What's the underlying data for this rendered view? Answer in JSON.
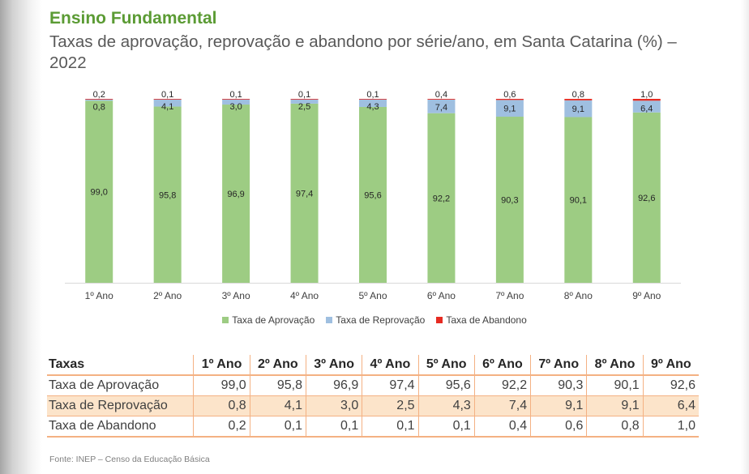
{
  "section_title": "Ensino Fundamental",
  "subtitle": "Taxas de aprovação, reprovação e abandono por série/ano, em Santa Catarina (%) – 2022",
  "chart_data": {
    "type": "bar",
    "stacked": true,
    "categories": [
      "1º Ano",
      "2º Ano",
      "3º Ano",
      "4º Ano",
      "5º Ano",
      "6º Ano",
      "7º Ano",
      "8º Ano",
      "9º Ano"
    ],
    "series": [
      {
        "name": "Taxa de Aprovação",
        "color": "#9dcc83",
        "values": [
          99.0,
          95.8,
          96.9,
          97.4,
          95.6,
          92.2,
          90.3,
          90.1,
          92.6
        ],
        "labels": [
          "99,0",
          "95,8",
          "96,9",
          "97,4",
          "95,6",
          "92,2",
          "90,3",
          "90,1",
          "92,6"
        ]
      },
      {
        "name": "Taxa de Reprovação",
        "color": "#9fbfe0",
        "values": [
          0.8,
          4.1,
          3.0,
          2.5,
          4.3,
          7.4,
          9.1,
          9.1,
          6.4
        ],
        "labels": [
          "0,8",
          "4,1",
          "3,0",
          "2,5",
          "4,3",
          "7,4",
          "9,1",
          "9,1",
          "6,4"
        ]
      },
      {
        "name": "Taxa de Abandono",
        "color": "#e62b22",
        "values": [
          0.2,
          0.1,
          0.1,
          0.1,
          0.1,
          0.4,
          0.6,
          0.8,
          1.0
        ],
        "labels": [
          "0,2",
          "0,1",
          "0,1",
          "0,1",
          "0,1",
          "0,4",
          "0,6",
          "0,8",
          "1,0"
        ]
      }
    ],
    "ylim": [
      0,
      100
    ],
    "grid": false,
    "legend_position": "bottom"
  },
  "table": {
    "corner_header": "Taxas",
    "headers": [
      "1º Ano",
      "2º Ano",
      "3º Ano",
      "4º Ano",
      "5º Ano",
      "6º Ano",
      "7º Ano",
      "8º Ano",
      "9º Ano"
    ],
    "rows": [
      {
        "label": "Taxa de Aprovação",
        "cells": [
          "99,0",
          "95,8",
          "96,9",
          "97,4",
          "95,6",
          "92,2",
          "90,3",
          "90,1",
          "92,6"
        ]
      },
      {
        "label": "Taxa de Reprovação",
        "cells": [
          "0,8",
          "4,1",
          "3,0",
          "2,5",
          "4,3",
          "7,4",
          "9,1",
          "9,1",
          "6,4"
        ]
      },
      {
        "label": "Taxa de Abandono",
        "cells": [
          "0,2",
          "0,1",
          "0,1",
          "0,1",
          "0,1",
          "0,4",
          "0,6",
          "0,8",
          "1,0"
        ]
      }
    ]
  },
  "footnote": "Fonte: INEP – Censo da Educação Básica"
}
